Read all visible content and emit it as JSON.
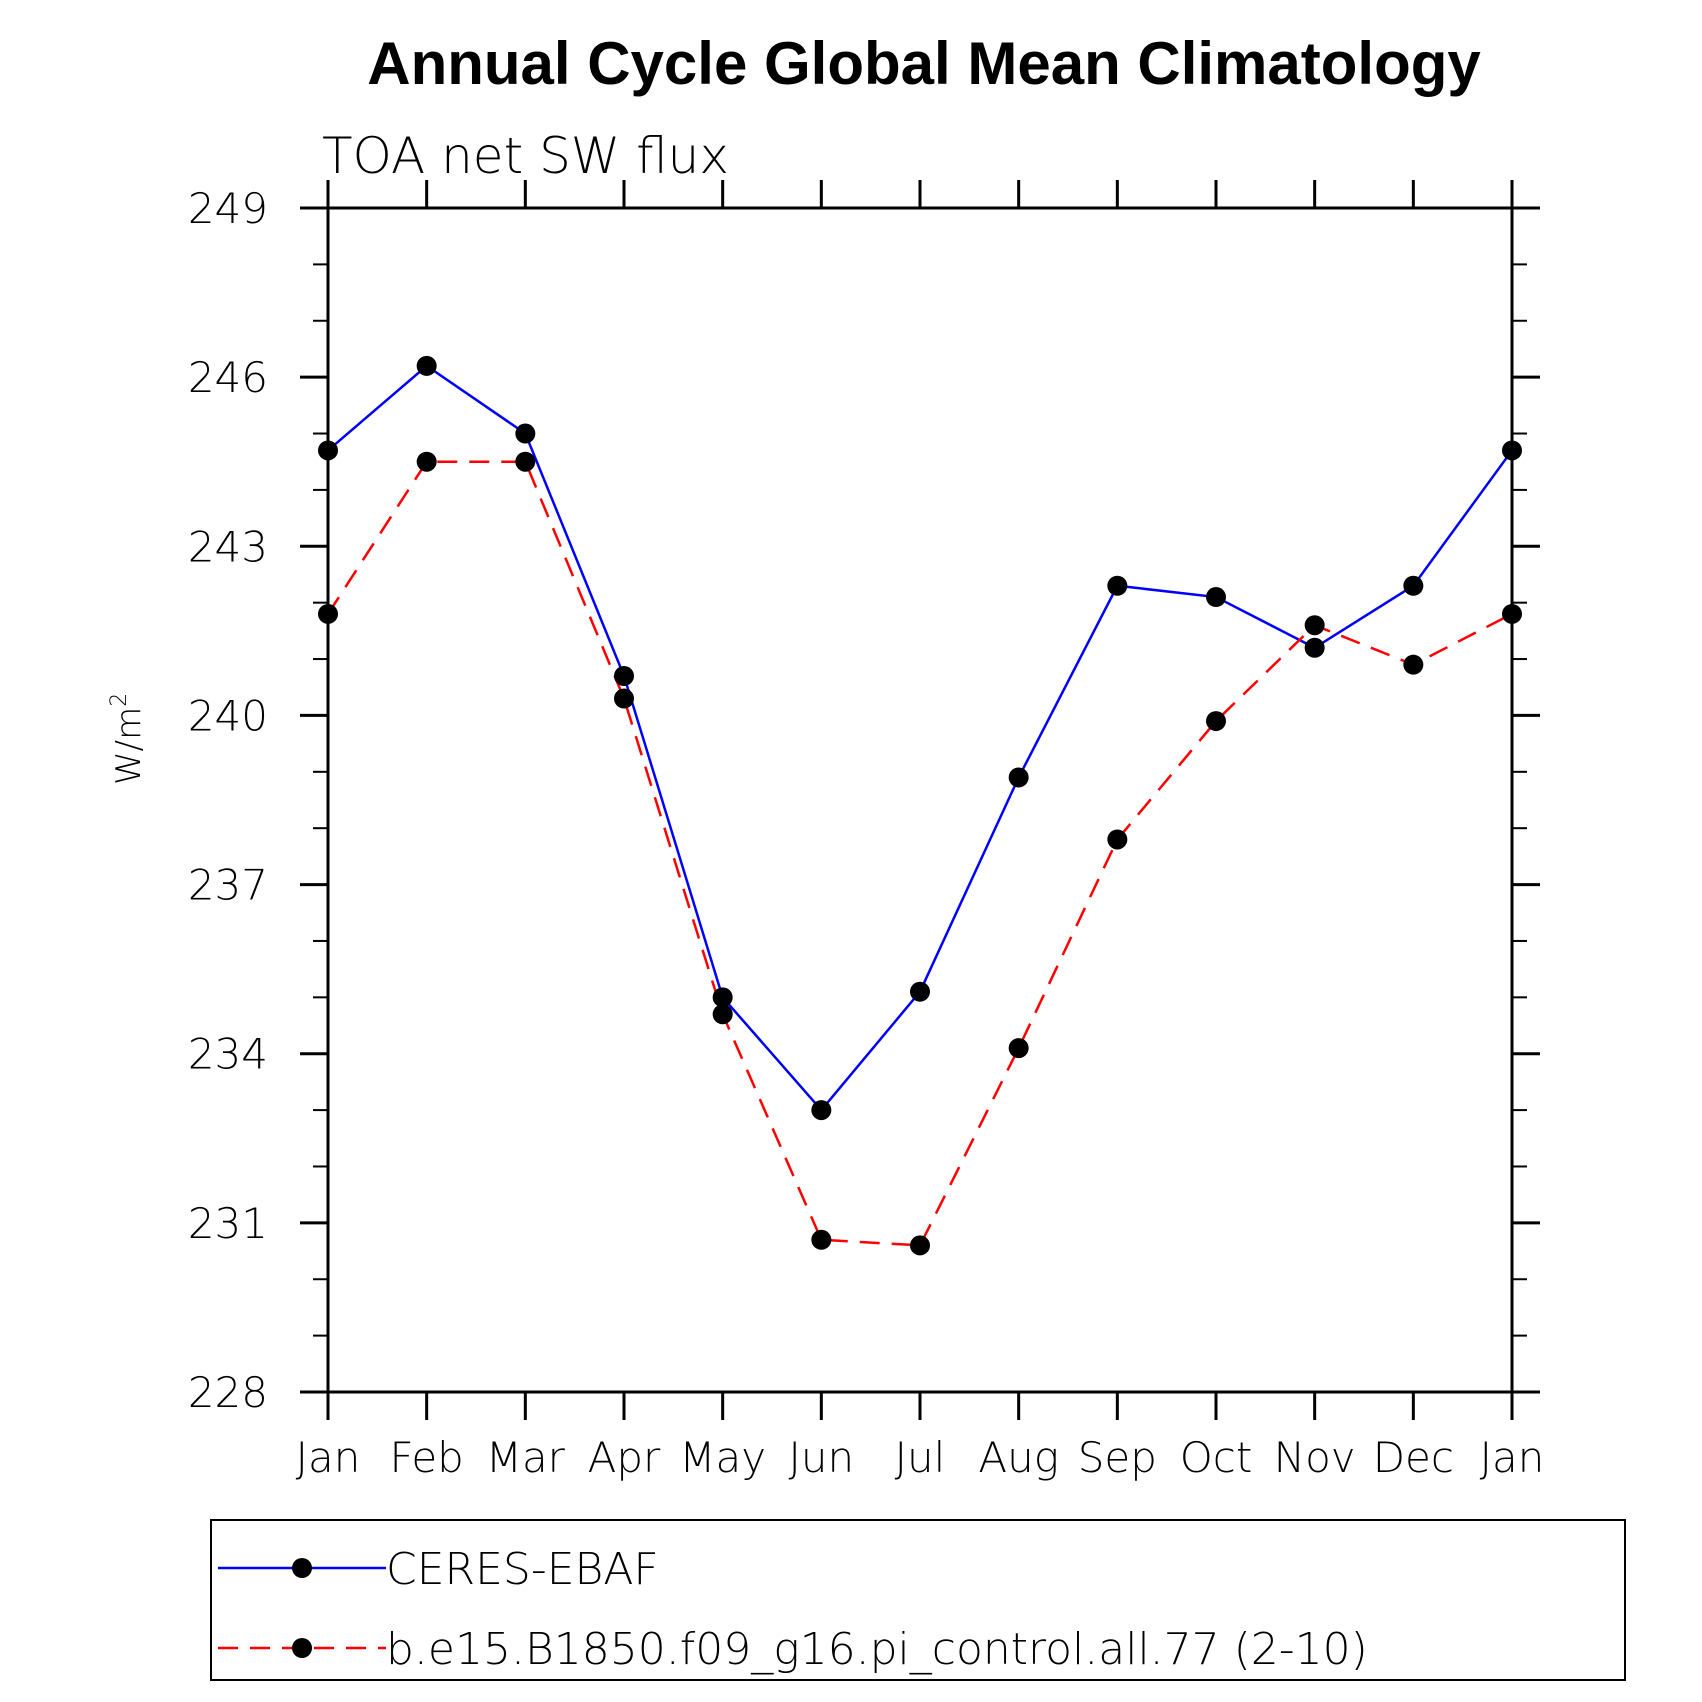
{
  "chart_data": {
    "type": "line",
    "title": "Annual Cycle Global Mean Climatology",
    "subtitle": "TOA net SW flux",
    "ylabel": "W/m",
    "ylabel_sup": "2",
    "xlabel": "",
    "categories": [
      "Jan",
      "Feb",
      "Mar",
      "Apr",
      "May",
      "Jun",
      "Jul",
      "Aug",
      "Sep",
      "Oct",
      "Nov",
      "Dec",
      "Jan"
    ],
    "ylim": [
      228,
      249
    ],
    "yticks": [
      228,
      231,
      234,
      237,
      240,
      243,
      246,
      249
    ],
    "grid": false,
    "legend_position": "bottom",
    "series": [
      {
        "name": "CERES-EBAF",
        "color": "#0000ff",
        "dash": "solid",
        "values": [
          244.7,
          246.2,
          245.0,
          240.7,
          235.0,
          233.0,
          235.1,
          238.9,
          242.3,
          242.1,
          241.2,
          242.3,
          244.7
        ]
      },
      {
        "name": "b.e15.B1850.f09_g16.pi_control.all.77 (2-10)",
        "color": "#ff0000",
        "dash": "dashed",
        "values": [
          241.8,
          244.5,
          244.5,
          240.3,
          234.7,
          230.7,
          230.6,
          234.1,
          237.8,
          239.9,
          241.6,
          240.9,
          241.8
        ]
      }
    ]
  }
}
